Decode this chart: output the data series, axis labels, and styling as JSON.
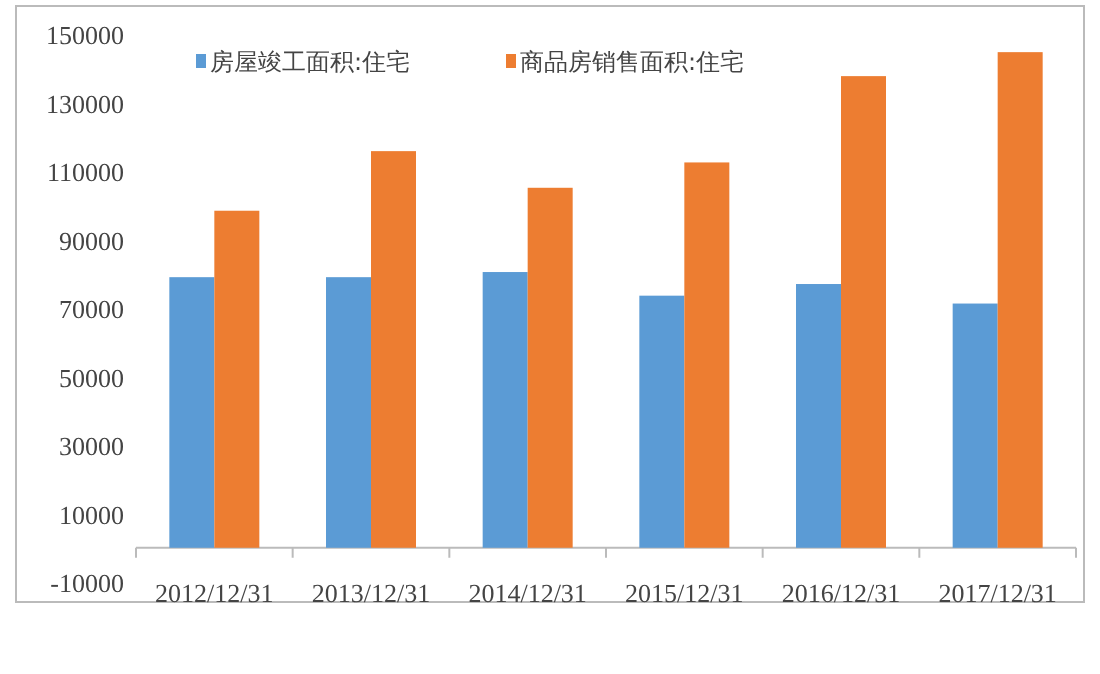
{
  "chart_data": {
    "type": "bar",
    "categories": [
      "2012/12/31",
      "2013/12/31",
      "2014/12/31",
      "2015/12/31",
      "2016/12/31",
      "2017/12/31"
    ],
    "series": [
      {
        "name": "房屋竣工面积:住宅",
        "color": "#5b9bd5",
        "values": [
          79000,
          79000,
          80500,
          73600,
          77000,
          71300
        ]
      },
      {
        "name": "商品房销售面积:住宅",
        "color": "#ed7d31",
        "values": [
          98400,
          115800,
          105100,
          112500,
          137700,
          144700
        ]
      }
    ],
    "ylim": [
      -10000,
      150000
    ],
    "yticks": [
      -10000,
      10000,
      30000,
      50000,
      70000,
      90000,
      110000,
      130000,
      150000
    ],
    "grid": false,
    "legend": "top"
  }
}
